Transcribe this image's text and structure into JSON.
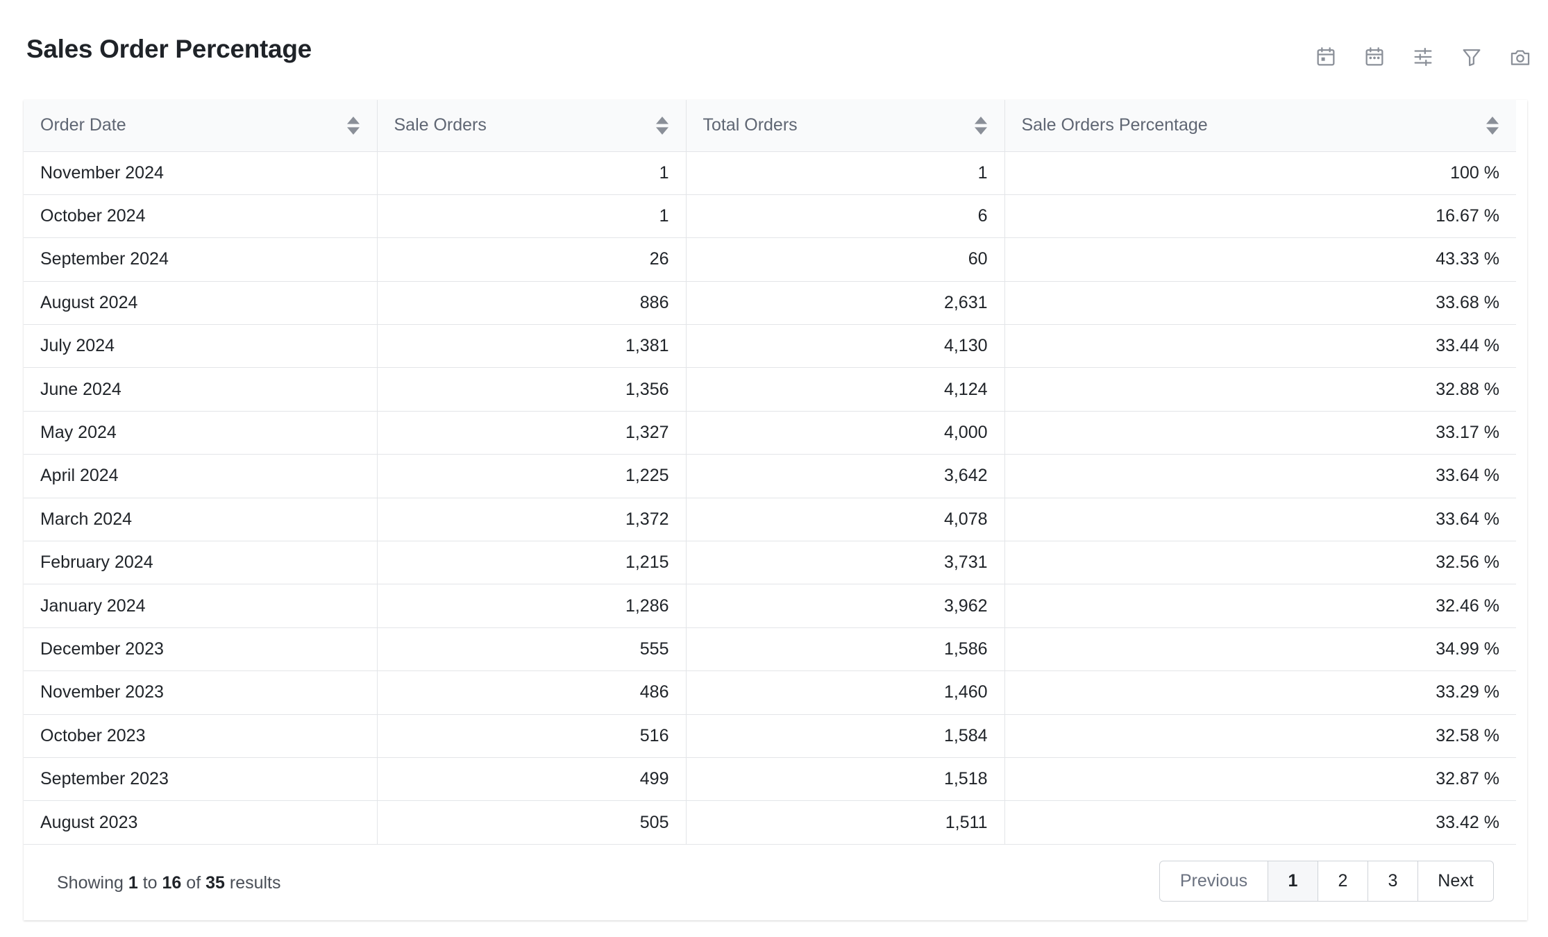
{
  "title": "Sales Order Percentage",
  "toolbar": [
    {
      "name": "calendar-day-icon"
    },
    {
      "name": "calendar-icon"
    },
    {
      "name": "sliders-icon"
    },
    {
      "name": "filter-icon"
    },
    {
      "name": "camera-icon"
    }
  ],
  "table": {
    "headers": [
      "Order Date",
      "Sale Orders",
      "Total Orders",
      "Sale Orders Percentage"
    ],
    "rows": [
      [
        "November 2024",
        "1",
        "1",
        "100 %"
      ],
      [
        "October 2024",
        "1",
        "6",
        "16.67 %"
      ],
      [
        "September 2024",
        "26",
        "60",
        "43.33 %"
      ],
      [
        "August 2024",
        "886",
        "2,631",
        "33.68 %"
      ],
      [
        "July 2024",
        "1,381",
        "4,130",
        "33.44 %"
      ],
      [
        "June 2024",
        "1,356",
        "4,124",
        "32.88 %"
      ],
      [
        "May 2024",
        "1,327",
        "4,000",
        "33.17 %"
      ],
      [
        "April 2024",
        "1,225",
        "3,642",
        "33.64 %"
      ],
      [
        "March 2024",
        "1,372",
        "4,078",
        "33.64 %"
      ],
      [
        "February 2024",
        "1,215",
        "3,731",
        "32.56 %"
      ],
      [
        "January 2024",
        "1,286",
        "3,962",
        "32.46 %"
      ],
      [
        "December 2023",
        "555",
        "1,586",
        "34.99 %"
      ],
      [
        "November 2023",
        "486",
        "1,460",
        "33.29 %"
      ],
      [
        "October 2023",
        "516",
        "1,584",
        "32.58 %"
      ],
      [
        "September 2023",
        "499",
        "1,518",
        "32.87 %"
      ],
      [
        "August 2023",
        "505",
        "1,511",
        "33.42 %"
      ]
    ]
  },
  "footer": {
    "showing_prefix": "Showing",
    "from": "1",
    "to_word": "to",
    "to": "16",
    "of_word": "of",
    "total": "35",
    "results_word": "results"
  },
  "pagination": {
    "previous": "Previous",
    "pages": [
      "1",
      "2",
      "3"
    ],
    "active": "1",
    "next": "Next"
  },
  "colors": {
    "icon": "#8a8f98",
    "border": "#e3e5e8",
    "header_bg": "#f9fafb"
  }
}
